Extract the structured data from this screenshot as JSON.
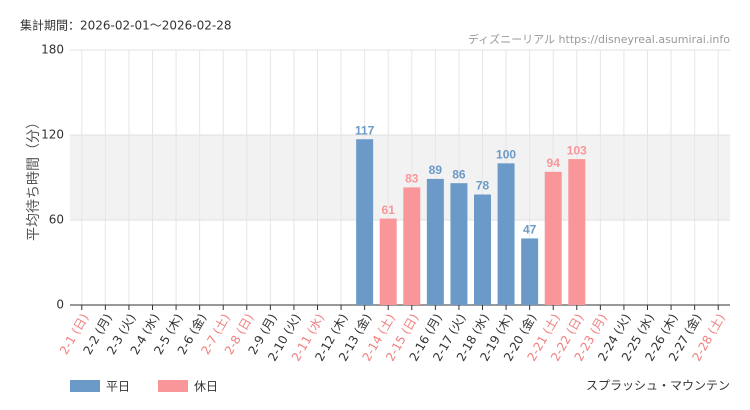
{
  "chart_data": {
    "type": "bar",
    "title": "集計期間：2026-02-01～2026-02-28",
    "source": "ディズニーリアル https://disneyreal.asumirai.info",
    "y_label": "平均待ち時間（分）",
    "attraction": "スプラッシュ・マウンテン",
    "categories": [
      "2-1 (日)",
      "2-2 (月)",
      "2-3 (火)",
      "2-4 (水)",
      "2-5 (木)",
      "2-6 (金)",
      "2-7 (土)",
      "2-8 (日)",
      "2-9 (月)",
      "2-10 (火)",
      "2-11 (水)",
      "2-12 (木)",
      "2-13 (金)",
      "2-14 (土)",
      "2-15 (日)",
      "2-16 (月)",
      "2-17 (火)",
      "2-18 (水)",
      "2-19 (木)",
      "2-20 (金)",
      "2-21 (土)",
      "2-22 (日)",
      "2-23 (月)",
      "2-24 (火)",
      "2-25 (水)",
      "2-26 (木)",
      "2-27 (金)",
      "2-28 (土)"
    ],
    "holiday": [
      true,
      false,
      false,
      false,
      false,
      false,
      true,
      true,
      false,
      false,
      true,
      false,
      false,
      true,
      true,
      false,
      false,
      false,
      false,
      false,
      true,
      true,
      true,
      false,
      false,
      false,
      false,
      true
    ],
    "holiday_label_color": "#f08080",
    "series": [
      {
        "name": "平日",
        "color": "#6b9ac8",
        "values": [
          null,
          null,
          null,
          null,
          null,
          null,
          null,
          null,
          null,
          null,
          null,
          null,
          117,
          null,
          null,
          89,
          86,
          78,
          100,
          47,
          null,
          null,
          null,
          null,
          null,
          null,
          null,
          null
        ]
      },
      {
        "name": "休日",
        "color": "#f8969a",
        "values": [
          null,
          null,
          null,
          null,
          null,
          null,
          null,
          null,
          null,
          null,
          null,
          null,
          null,
          61,
          83,
          null,
          null,
          null,
          null,
          null,
          94,
          103,
          null,
          null,
          null,
          null,
          null,
          null
        ]
      }
    ],
    "ylim": [
      0,
      180
    ],
    "yticks": [
      0,
      60,
      120,
      180
    ],
    "shade": [
      60,
      120
    ],
    "grid": true,
    "legend": "bottom-left"
  }
}
